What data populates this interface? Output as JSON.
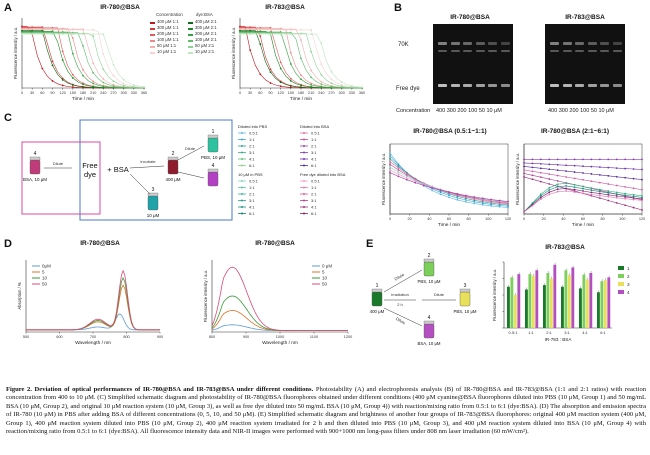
{
  "panels": {
    "A": {
      "letter": "A",
      "left_title": "IR-780@BSA",
      "right_title": "IR-783@BSA",
      "xlabel": "Time / min",
      "ylabel": "Fluorescence intensity / a.u.",
      "xticks": [
        "0",
        "30",
        "60",
        "90",
        "120",
        "150",
        "180",
        "210",
        "240",
        "270",
        "300",
        "330",
        "360"
      ],
      "legend_header": [
        "Concentration",
        "dye:BSA"
      ],
      "legend_col1": [
        "400 μM 1:1",
        "300 μM 1:1",
        "200 μM 1:1",
        "100 μM 1:1",
        "50 μM 1:1",
        "10 μM 1:1"
      ],
      "legend_col2": [
        "400 μM 2:1",
        "300 μM 2:1",
        "200 μM 2:1",
        "100 μM 2:1",
        "50 μM 2:1",
        "10 μM 2:1"
      ],
      "colors_1to1": [
        "#c0161d",
        "#d8373a",
        "#e35a5a",
        "#ec8a8a",
        "#f2b0b0",
        "#f7d2d2"
      ],
      "colors_2to1": [
        "#0d6a1a",
        "#1c8a2a",
        "#36a444",
        "#60bb6a",
        "#90d196",
        "#c2e6c4"
      ]
    },
    "B": {
      "letter": "B",
      "left_title": "IR-780@BSA",
      "right_title": "IR-783@BSA",
      "band_top": "70K",
      "band_bottom": "Free dye",
      "conc_label": "Concentration",
      "left_conc": "400 300 200 100 50 10 μM",
      "right_conc": "400 300 200 100 50 10 μM"
    },
    "C": {
      "letter": "C",
      "free_dye": "Free dye",
      "plus_bsa": "+ BSA",
      "v1_label": "1",
      "v1_text": "PBS, 10 μM",
      "v2_label": "2",
      "v2_text": "400 μM",
      "v3_label": "3",
      "v3_text": "10 μM",
      "v4_label": "4",
      "v4_text": "BSA, 10 μM",
      "dilute": "Dilute",
      "incubate": "Incubate",
      "dilute2": "Dilute",
      "legend_a_title": "Diluted into PBS",
      "legend_b_title": "Diluted into BSA",
      "legend_c_title": "10 μM in PBS",
      "legend_d_title": "Free dye diluted into BSA",
      "legend_ratios": [
        "0.5:1",
        "1:1",
        "2:1",
        "3:1",
        "4:1",
        "6:1"
      ],
      "plot_left_title": "IR-780@BSA (0.5:1~1:1)",
      "plot_right_title": "IR-780@BSA (2:1~6:1)",
      "plot_xlabel": "Time / min",
      "plot_ylabel": "Fluorescence intensity / a.u.",
      "plot_xticks": [
        "0",
        "20",
        "40",
        "60",
        "80",
        "100",
        "120"
      ]
    },
    "D": {
      "letter": "D",
      "left_title": "IR-780@BSA",
      "right_title": "IR-780@BSA",
      "left_xlabel": "Wavelength / nm",
      "left_ylabel": "Absorption / %",
      "right_xlabel": "Wavelength / nm",
      "right_ylabel": "Fluorescence intensity / a.u.",
      "left_xticks": [
        "500",
        "600",
        "700",
        "800",
        "900"
      ],
      "right_xticks": [
        "800",
        "900",
        "1000",
        "1100",
        "1200"
      ],
      "left_legend": [
        "0μM",
        "5",
        "10",
        "50"
      ],
      "right_legend": [
        "0 μM",
        "5",
        "10",
        "50"
      ],
      "legend_colors": [
        "#5b9bd5",
        "#e0702a",
        "#3a9a3a",
        "#d84b7a"
      ]
    },
    "E": {
      "letter": "E",
      "v1_label": "1",
      "v1_text": "400 μM",
      "v2_label": "2",
      "v2_text": "PBS, 10 μM",
      "v3_label": "3",
      "v3_text": "PBS, 10 μM",
      "v4_label": "4",
      "v4_text": "BSA, 10 μM",
      "dilute_a": "Dilute",
      "dilute_b": "Dilute",
      "dilute_c": "Dilute",
      "irradiation": "Irradiation",
      "irr_time": "2 h",
      "plot_title": "IR-783@BSA",
      "plot_ylabel": "Fluorescence intensity / a.u.",
      "plot_xlabel": "IR-783 : BSA",
      "categories": [
        "0.5:1",
        "1:1",
        "2:1",
        "3:1",
        "4:1",
        "6:1"
      ],
      "legend": [
        "1",
        "2",
        "3",
        "4"
      ],
      "legend_colors": [
        "#1a7a2a",
        "#7ccf5a",
        "#e8e05a",
        "#b34fc0"
      ]
    }
  },
  "chart_data": [
    {
      "type": "bar",
      "title": "IR-783@BSA",
      "xlabel": "IR-783 : BSA",
      "ylabel": "Fluorescence intensity / a.u.",
      "categories": [
        "0.5:1",
        "1:1",
        "2:1",
        "3:1",
        "4:1",
        "6:1"
      ],
      "series": [
        {
          "name": "1",
          "values": [
            7.5,
            7.0,
            7.8,
            7.5,
            7.2,
            6.5
          ]
        },
        {
          "name": "2",
          "values": [
            9.2,
            9.8,
            10.0,
            10.5,
            9.7,
            8.5
          ]
        },
        {
          "name": "3",
          "values": [
            6.0,
            9.5,
            9.0,
            9.6,
            8.8,
            8.7
          ]
        },
        {
          "name": "4",
          "values": [
            9.8,
            10.5,
            11.5,
            11.0,
            10.0,
            9.2
          ]
        }
      ]
    }
  ],
  "caption": {
    "fig_label": "Figure 2. Deviation of optical performances of IR-780@BSA and IR-783@BSA under different conditions.",
    "body": "Photostability (A) and electrophoresis analysis (B) of IR-780@BSA and IR-783@BSA (1:1 and 2:1 ratios) with reaction concentration from 400 to 10 μM. (C) Simplified schematic diagram and photostability of IR-780@BSA fluorophores obtained under different conditions (400 μM cyanine@BSA fluorophores diluted into PBS (10 μM, Group 1) and 50 mg/mL BSA (10 μM, Group 2), and original 10 μM reaction system (10 μM, Group 3), as well as free dye diluted into 50 mg/mL BSA (10 μM, Group 4)) with reaction/mixing ratio from 0.5:1 to 6:1 (dye:BSA). (D) The absorption and emission spectra of IR-780 (10 μM) in PBS after adding BSA of different concentrations (0, 5, 10, and 50 μM). (E) Simplified schematic diagram and brightness of another four groups of IR-783@BSA fluorophores: original 400 μM reaction system (400 μM, Group 1), 400 μM reaction system diluted into PBS (10 μM, Group 2), 400 μM reaction system irradiated for 2 h and then diluted into PBS (10 μM, Group 3), and 400 μM reaction system diluted into BSA (10 μM, Group 4) with reaction/mixing ratio from 0.5:1 to 6:1 (dye:BSA). All fluorescence intensity data and NIR-II images were performed with 900+1000 nm long-pass filters under 808 nm laser irradiation (60 mW/cm²)."
  }
}
